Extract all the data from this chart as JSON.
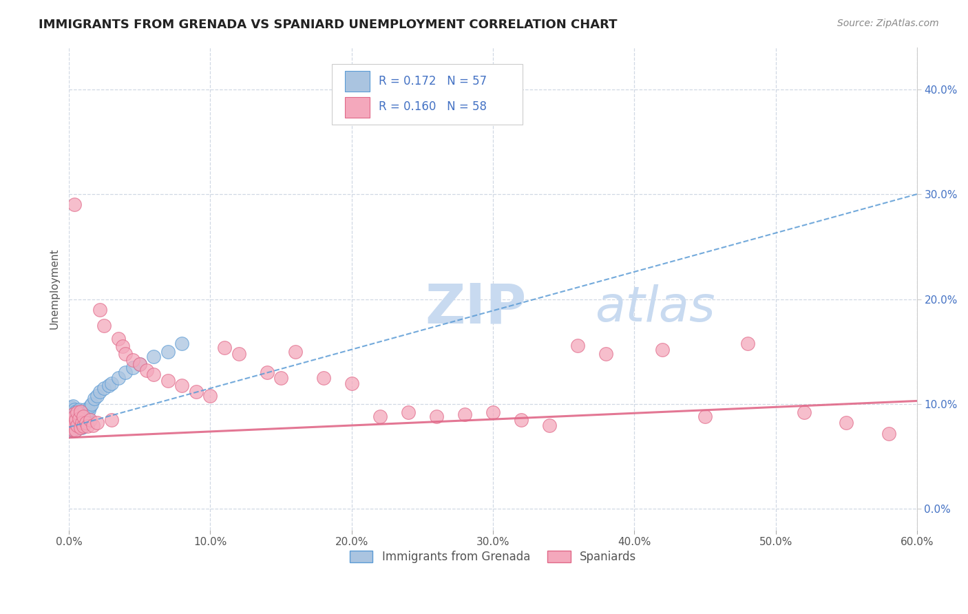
{
  "title": "IMMIGRANTS FROM GRENADA VS SPANIARD UNEMPLOYMENT CORRELATION CHART",
  "source_text": "Source: ZipAtlas.com",
  "ylabel": "Unemployment",
  "xlim": [
    0.0,
    0.6
  ],
  "ylim": [
    -0.02,
    0.44
  ],
  "xtick_labels": [
    "0.0%",
    "10.0%",
    "20.0%",
    "30.0%",
    "40.0%",
    "50.0%",
    "60.0%"
  ],
  "xtick_vals": [
    0.0,
    0.1,
    0.2,
    0.3,
    0.4,
    0.5,
    0.6
  ],
  "ytick_right_labels": [
    "0.0%",
    "10.0%",
    "20.0%",
    "30.0%",
    "40.0%"
  ],
  "ytick_right_vals": [
    0.0,
    0.1,
    0.2,
    0.3,
    0.4
  ],
  "R1": 0.172,
  "N1": 57,
  "R2": 0.16,
  "N2": 58,
  "color1": "#aac4e0",
  "color2": "#f4a8bc",
  "color1_dark": "#5b9bd5",
  "color2_dark": "#e06888",
  "background_color": "#ffffff",
  "grid_color": "#d0d8e4",
  "title_color": "#222222",
  "legend_text_color": "#4472c4",
  "watermark_color": "#dce8f4",
  "trend1_start_y": 0.078,
  "trend1_end_y": 0.3,
  "trend2_start_y": 0.068,
  "trend2_end_y": 0.103,
  "grenada_x": [
    0.001,
    0.001,
    0.001,
    0.001,
    0.001,
    0.002,
    0.002,
    0.002,
    0.002,
    0.002,
    0.002,
    0.003,
    0.003,
    0.003,
    0.003,
    0.003,
    0.003,
    0.004,
    0.004,
    0.004,
    0.004,
    0.005,
    0.005,
    0.005,
    0.005,
    0.006,
    0.006,
    0.006,
    0.007,
    0.007,
    0.007,
    0.008,
    0.008,
    0.009,
    0.009,
    0.01,
    0.01,
    0.011,
    0.011,
    0.012,
    0.013,
    0.014,
    0.015,
    0.016,
    0.018,
    0.02,
    0.022,
    0.025,
    0.028,
    0.03,
    0.035,
    0.04,
    0.045,
    0.05,
    0.06,
    0.07,
    0.08
  ],
  "grenada_y": [
    0.08,
    0.085,
    0.088,
    0.092,
    0.095,
    0.075,
    0.082,
    0.085,
    0.09,
    0.093,
    0.097,
    0.076,
    0.08,
    0.083,
    0.088,
    0.092,
    0.098,
    0.078,
    0.083,
    0.09,
    0.095,
    0.075,
    0.08,
    0.086,
    0.093,
    0.078,
    0.085,
    0.092,
    0.08,
    0.087,
    0.095,
    0.082,
    0.09,
    0.078,
    0.088,
    0.082,
    0.092,
    0.085,
    0.095,
    0.088,
    0.09,
    0.094,
    0.098,
    0.1,
    0.105,
    0.108,
    0.112,
    0.115,
    0.118,
    0.12,
    0.125,
    0.13,
    0.135,
    0.138,
    0.145,
    0.15,
    0.158
  ],
  "spaniard_x": [
    0.001,
    0.002,
    0.003,
    0.003,
    0.004,
    0.004,
    0.005,
    0.005,
    0.006,
    0.006,
    0.007,
    0.008,
    0.008,
    0.009,
    0.01,
    0.01,
    0.012,
    0.013,
    0.015,
    0.017,
    0.02,
    0.022,
    0.025,
    0.03,
    0.035,
    0.038,
    0.04,
    0.045,
    0.05,
    0.055,
    0.06,
    0.07,
    0.08,
    0.09,
    0.1,
    0.11,
    0.12,
    0.14,
    0.15,
    0.16,
    0.18,
    0.2,
    0.22,
    0.24,
    0.26,
    0.28,
    0.3,
    0.32,
    0.34,
    0.36,
    0.38,
    0.42,
    0.45,
    0.48,
    0.52,
    0.55,
    0.58,
    0.004
  ],
  "spaniard_y": [
    0.078,
    0.082,
    0.076,
    0.09,
    0.082,
    0.088,
    0.075,
    0.085,
    0.08,
    0.092,
    0.086,
    0.078,
    0.093,
    0.082,
    0.079,
    0.088,
    0.082,
    0.079,
    0.085,
    0.08,
    0.082,
    0.19,
    0.175,
    0.085,
    0.162,
    0.155,
    0.148,
    0.142,
    0.138,
    0.132,
    0.128,
    0.122,
    0.118,
    0.112,
    0.108,
    0.154,
    0.148,
    0.13,
    0.125,
    0.15,
    0.125,
    0.12,
    0.088,
    0.092,
    0.088,
    0.09,
    0.092,
    0.085,
    0.08,
    0.156,
    0.148,
    0.152,
    0.088,
    0.158,
    0.092,
    0.082,
    0.072,
    0.29
  ]
}
